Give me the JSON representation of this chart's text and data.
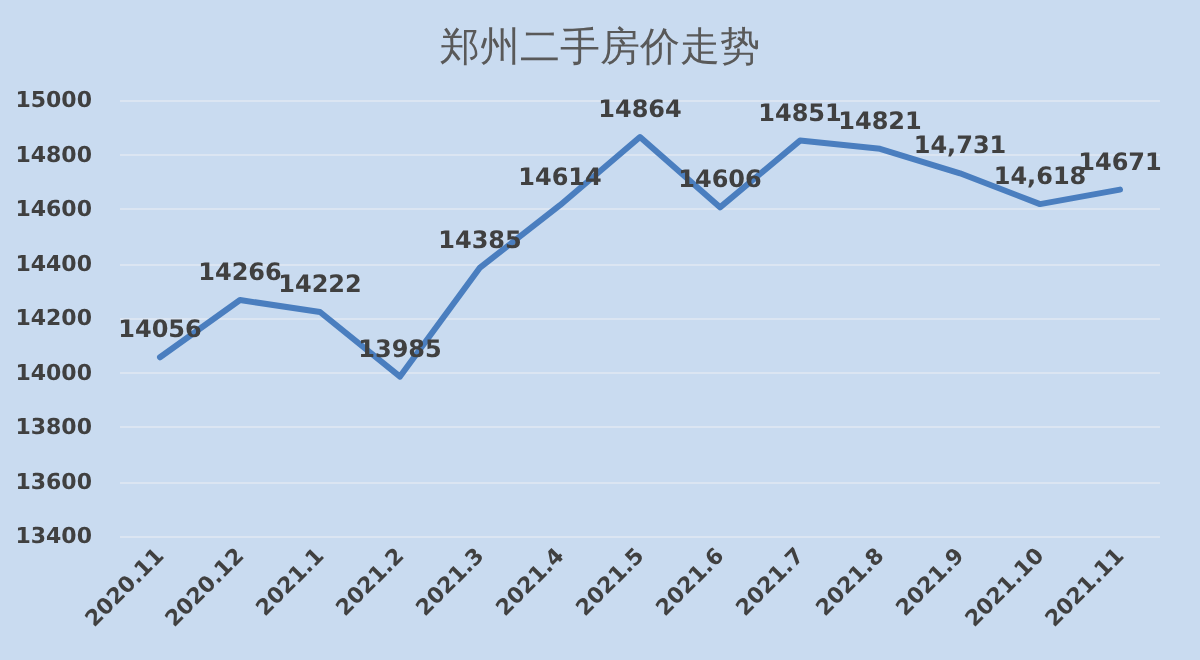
{
  "chart_data": {
    "type": "line",
    "title": "郑州二手房价走势",
    "categories": [
      "2020.11",
      "2020.12",
      "2021.1",
      "2021.2",
      "2021.3",
      "2021.4",
      "2021.5",
      "2021.6",
      "2021.7",
      "2021.8",
      "2021.9",
      "2021.10",
      "2021.11"
    ],
    "series": [
      {
        "color": "#4a7ebf",
        "values": [
          14056,
          14266,
          14222,
          13985,
          14385,
          14614,
          14864,
          14606,
          14851,
          14821,
          14731,
          14618,
          14671
        ],
        "value_labels": [
          "14056",
          "14266",
          "14222",
          "13985",
          "14385",
          "14614",
          "14864",
          "14606",
          "14851",
          "14821",
          "14,731",
          "14,618",
          "14671"
        ]
      }
    ],
    "ylim": [
      13400,
      15000
    ],
    "yticks": [
      13400,
      13600,
      13800,
      14000,
      14200,
      14400,
      14600,
      14800,
      15000
    ],
    "grid": "y",
    "marker": "none",
    "line_style": "solid"
  }
}
